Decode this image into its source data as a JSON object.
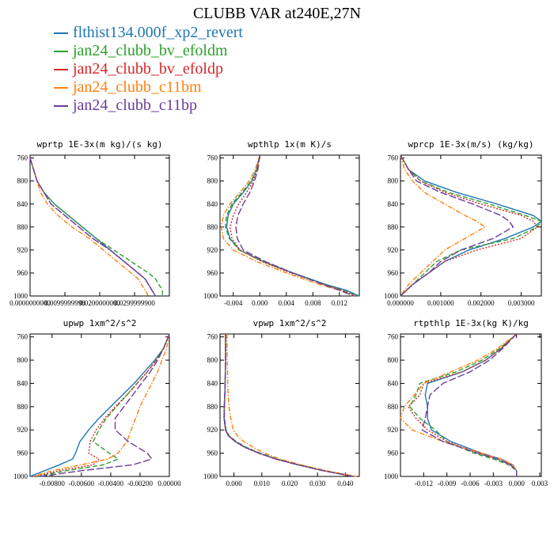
{
  "title": "CLUBB VAR at240E,27N",
  "colors": {
    "flthist134.000f_xp2_revert": "#1f77b4",
    "jan24_clubb_bv_efoldm": "#2ca02c",
    "jan24_clubb_bv_efoldp": "#d62728",
    "jan24_clubb_c11bm": "#ff7f0e",
    "jan24_clubb_c11bp": "#6a3d9a"
  },
  "legend": [
    {
      "label": "flthist134.000f_xp2_revert",
      "color": "#1f77b4",
      "dash": "solid"
    },
    {
      "label": "jan24_clubb_bv_efoldm",
      "color": "#2ca02c",
      "dash": "dash"
    },
    {
      "label": "jan24_clubb_bv_efoldp",
      "color": "#d62728",
      "dash": "dot"
    },
    {
      "label": "jan24_clubb_c11bm",
      "color": "#ff7f0e",
      "dash": "dashdot"
    },
    {
      "label": "jan24_clubb_c11bp",
      "color": "#6a3d9a",
      "dash": "longdash"
    }
  ],
  "chart_data": [
    {
      "type": "line",
      "title": "wprtp  1E-3x(m kg)/(s kg)",
      "xlim": [
        0,
        0.04
      ],
      "ylim": [
        1000,
        755
      ],
      "xticks": [
        0,
        0.01,
        0.02,
        0.03
      ],
      "xticklabels": [
        "0.0000000000",
        "0.0099999998",
        "0.0200000000",
        "0.0299999900"
      ],
      "yticks": [
        760,
        800,
        840,
        880,
        920,
        960,
        1000
      ],
      "yticklabels": [
        "760",
        "800",
        "840",
        "880",
        "920",
        "960",
        "1000"
      ],
      "y": [
        760,
        780,
        800,
        820,
        840,
        860,
        880,
        900,
        920,
        940,
        960,
        970,
        980,
        990,
        1000
      ],
      "series": [
        {
          "name": "flthist134.000f_xp2_revert",
          "values": [
            0,
            0.001,
            0.002,
            0.004,
            0.007,
            0.011,
            0.015,
            0.019,
            0.023,
            0.027,
            0.031,
            0.033,
            0.034,
            0.035,
            0.036
          ]
        },
        {
          "name": "jan24_clubb_bv_efoldm",
          "values": [
            0,
            0.001,
            0.002,
            0.004,
            0.007,
            0.011,
            0.015,
            0.019,
            0.024,
            0.029,
            0.034,
            0.036,
            0.037,
            0.038,
            0.038
          ]
        },
        {
          "name": "jan24_clubb_bv_efoldp",
          "values": [
            0,
            0.001,
            0.002,
            0.004,
            0.006,
            0.01,
            0.014,
            0.018,
            0.023,
            0.027,
            0.031,
            0.033,
            0.034,
            0.035,
            0.036
          ]
        },
        {
          "name": "jan24_clubb_c11bm",
          "values": [
            0,
            0.001,
            0.002,
            0.003,
            0.005,
            0.008,
            0.012,
            0.017,
            0.021,
            0.025,
            0.029,
            0.031,
            0.032,
            0.033,
            0.034
          ]
        },
        {
          "name": "jan24_clubb_c11bp",
          "values": [
            0,
            0.001,
            0.002,
            0.004,
            0.006,
            0.01,
            0.014,
            0.018,
            0.023,
            0.027,
            0.031,
            0.033,
            0.034,
            0.035,
            0.036
          ]
        }
      ]
    },
    {
      "type": "line",
      "title": "wpthlp  1x(m K)/s",
      "xlim": [
        -0.006,
        0.015
      ],
      "ylim": [
        1000,
        755
      ],
      "xticks": [
        -0.004,
        0,
        0.004,
        0.008,
        0.012
      ],
      "xticklabels": [
        "-0.004",
        "0.000",
        "0.004",
        "0.008",
        "0.012"
      ],
      "yticks": [
        760,
        800,
        840,
        880,
        920,
        960,
        1000
      ],
      "yticklabels": [
        "760",
        "800",
        "840",
        "880",
        "920",
        "960",
        "1000"
      ],
      "y": [
        755,
        780,
        800,
        820,
        840,
        860,
        880,
        900,
        920,
        940,
        960,
        980,
        990,
        1000
      ],
      "series": [
        {
          "name": "flthist134.000f_xp2_revert",
          "values": [
            0.0,
            -0.0005,
            -0.0012,
            -0.0025,
            -0.004,
            -0.0048,
            -0.005,
            -0.0045,
            -0.003,
            0.0005,
            0.005,
            0.01,
            0.013,
            0.015
          ]
        },
        {
          "name": "jan24_clubb_bv_efoldm",
          "values": [
            0.0,
            -0.0005,
            -0.0013,
            -0.0027,
            -0.0042,
            -0.005,
            -0.0052,
            -0.0046,
            -0.0031,
            0.0004,
            0.0048,
            0.0098,
            0.0125,
            0.0148
          ]
        },
        {
          "name": "jan24_clubb_bv_efoldp",
          "values": [
            0.0,
            -0.0004,
            -0.001,
            -0.002,
            -0.0032,
            -0.004,
            -0.0045,
            -0.0042,
            -0.003,
            0.0003,
            0.0047,
            0.0097,
            0.0123,
            0.0145
          ]
        },
        {
          "name": "jan24_clubb_c11bm",
          "values": [
            0.0,
            -0.0007,
            -0.0016,
            -0.003,
            -0.0045,
            -0.0055,
            -0.0058,
            -0.0055,
            -0.004,
            -0.0005,
            0.004,
            0.009,
            0.012,
            0.014
          ]
        },
        {
          "name": "jan24_clubb_c11bp",
          "values": [
            0.0,
            -0.0003,
            -0.0008,
            -0.0015,
            -0.0025,
            -0.0033,
            -0.0036,
            -0.0034,
            -0.0025,
            0.0008,
            0.005,
            0.0095,
            0.012,
            0.0142
          ]
        }
      ]
    },
    {
      "type": "line",
      "title": "wprcp  1E-3x(m/s) (kg/kg)",
      "xlim": [
        0,
        0.0035
      ],
      "ylim": [
        1000,
        755
      ],
      "xticks": [
        0,
        0.001,
        0.002,
        0.003
      ],
      "xticklabels": [
        "0.000000",
        "0.001000",
        "0.002000",
        "0.003000"
      ],
      "yticks": [
        760,
        800,
        840,
        880,
        920,
        960,
        1000
      ],
      "yticklabels": [
        "760",
        "800",
        "840",
        "880",
        "920",
        "960",
        "1000"
      ],
      "y": [
        755,
        780,
        800,
        820,
        840,
        860,
        870,
        880,
        900,
        920,
        940,
        960,
        980,
        1000
      ],
      "series": [
        {
          "name": "flthist134.000f_xp2_revert",
          "values": [
            0,
            0.0002,
            0.0006,
            0.0014,
            0.0024,
            0.0033,
            0.0035,
            0.0033,
            0.0026,
            0.0017,
            0.0011,
            0.0007,
            0.0003,
            0
          ]
        },
        {
          "name": "jan24_clubb_bv_efoldm",
          "values": [
            0,
            0.0002,
            0.0005,
            0.0012,
            0.0022,
            0.0031,
            0.0035,
            0.0034,
            0.0028,
            0.0015,
            0.0009,
            0.0006,
            0.0003,
            0
          ]
        },
        {
          "name": "jan24_clubb_bv_efoldp",
          "values": [
            0,
            0.0002,
            0.0005,
            0.0011,
            0.002,
            0.003,
            0.0033,
            0.0034,
            0.003,
            0.0019,
            0.0011,
            0.0007,
            0.0003,
            0
          ]
        },
        {
          "name": "jan24_clubb_c11bm",
          "values": [
            0,
            0.0001,
            0.0003,
            0.0006,
            0.0011,
            0.0016,
            0.0019,
            0.0021,
            0.0016,
            0.0011,
            0.0008,
            0.0005,
            0.0002,
            0
          ]
        },
        {
          "name": "jan24_clubb_c11bp",
          "values": [
            0,
            0.0002,
            0.0004,
            0.001,
            0.0018,
            0.0025,
            0.0027,
            0.0028,
            0.0023,
            0.0015,
            0.001,
            0.0007,
            0.0003,
            0
          ]
        }
      ]
    },
    {
      "type": "line",
      "title": "upwp  1xm^2/s^2",
      "xlim": [
        -0.0095,
        0
      ],
      "ylim": [
        1000,
        755
      ],
      "xticks": [
        -0.008,
        -0.006,
        -0.004,
        -0.002,
        0
      ],
      "xticklabels": [
        "-0.00800",
        "-0.00600",
        "-0.00400",
        "-0.00200",
        "0.00000"
      ],
      "yticks": [
        760,
        800,
        840,
        880,
        920,
        960,
        1000
      ],
      "yticklabels": [
        "760",
        "800",
        "840",
        "880",
        "920",
        "960",
        "1000"
      ],
      "y": [
        755,
        780,
        800,
        820,
        840,
        860,
        880,
        900,
        920,
        940,
        960,
        970,
        980,
        990,
        1000
      ],
      "series": [
        {
          "name": "flthist134.000f_xp2_revert",
          "values": [
            0,
            -0.0004,
            -0.001,
            -0.0017,
            -0.0024,
            -0.0032,
            -0.004,
            -0.0048,
            -0.0055,
            -0.0061,
            -0.0064,
            -0.0066,
            -0.0075,
            -0.0085,
            -0.0095
          ]
        },
        {
          "name": "jan24_clubb_bv_efoldm",
          "values": [
            0,
            -0.0004,
            -0.0009,
            -0.0015,
            -0.0022,
            -0.0029,
            -0.0036,
            -0.0043,
            -0.0048,
            -0.0052,
            -0.0041,
            -0.0035,
            -0.0045,
            -0.007,
            -0.009
          ]
        },
        {
          "name": "jan24_clubb_bv_efoldp",
          "values": [
            0,
            -0.0004,
            -0.0009,
            -0.0015,
            -0.0022,
            -0.0029,
            -0.0037,
            -0.0044,
            -0.005,
            -0.0054,
            -0.0055,
            -0.0048,
            -0.0052,
            -0.0075,
            -0.0092
          ]
        },
        {
          "name": "jan24_clubb_c11bm",
          "values": [
            0,
            -0.0002,
            -0.0005,
            -0.0008,
            -0.0012,
            -0.0016,
            -0.002,
            -0.0023,
            -0.0026,
            -0.0029,
            -0.0035,
            -0.0042,
            -0.006,
            -0.008,
            -0.0093
          ]
        },
        {
          "name": "jan24_clubb_c11bp",
          "values": [
            0,
            -0.0004,
            -0.0008,
            -0.0013,
            -0.0019,
            -0.0025,
            -0.0031,
            -0.0037,
            -0.0037,
            -0.0028,
            -0.0015,
            -0.0012,
            -0.0025,
            -0.006,
            -0.0088
          ]
        }
      ]
    },
    {
      "type": "line",
      "title": "vpwp  1xm^2/s^2",
      "xlim": [
        -0.005,
        0.045
      ],
      "ylim": [
        1000,
        755
      ],
      "xticks": [
        0,
        0.01,
        0.02,
        0.03,
        0.04
      ],
      "xticklabels": [
        "0.000",
        "0.010",
        "0.020",
        "0.030",
        "0.040"
      ],
      "yticks": [
        760,
        800,
        840,
        880,
        920,
        960,
        1000
      ],
      "yticklabels": [
        "760",
        "800",
        "840",
        "880",
        "920",
        "960",
        "1000"
      ],
      "y": [
        755,
        800,
        850,
        880,
        900,
        920,
        930,
        940,
        950,
        960,
        970,
        980,
        990,
        1000
      ],
      "series": [
        {
          "name": "flthist134.000f_xp2_revert",
          "values": [
            -0.003,
            -0.003,
            -0.0032,
            -0.0035,
            -0.0035,
            -0.003,
            -0.002,
            0.0005,
            0.004,
            0.009,
            0.015,
            0.023,
            0.032,
            0.043
          ]
        },
        {
          "name": "jan24_clubb_bv_efoldm",
          "values": [
            -0.003,
            -0.003,
            -0.0032,
            -0.0034,
            -0.0034,
            -0.0028,
            -0.0017,
            0.0008,
            0.0045,
            0.0095,
            0.0155,
            0.0235,
            0.0325,
            0.0435
          ]
        },
        {
          "name": "jan24_clubb_bv_efoldp",
          "values": [
            -0.003,
            -0.003,
            -0.0032,
            -0.0035,
            -0.0036,
            -0.0031,
            -0.0021,
            0.0003,
            0.0038,
            0.0088,
            0.0148,
            0.0228,
            0.0318,
            0.0425
          ]
        },
        {
          "name": "jan24_clubb_c11bm",
          "values": [
            -0.0025,
            -0.0024,
            -0.0022,
            -0.0018,
            -0.0012,
            -0.0002,
            0.0012,
            0.0035,
            0.007,
            0.011,
            0.0165,
            0.024,
            0.033,
            0.044
          ]
        },
        {
          "name": "jan24_clubb_c11bp",
          "values": [
            -0.003,
            -0.003,
            -0.0032,
            -0.0034,
            -0.0035,
            -0.003,
            -0.0019,
            0.0006,
            0.0041,
            0.0091,
            0.0151,
            0.0231,
            0.0321,
            0.0428
          ]
        }
      ]
    },
    {
      "type": "line",
      "title": "rtpthlp  1E-3x(kg K)/kg",
      "xlim": [
        -0.015,
        0.0032
      ],
      "ylim": [
        1000,
        755
      ],
      "xticks": [
        -0.012,
        -0.009,
        -0.006,
        -0.003,
        0,
        0.003
      ],
      "xticklabels": [
        "-0.012",
        "-0.009",
        "-0.006",
        "-0.003",
        "0.000",
        "0.003"
      ],
      "yticks": [
        760,
        800,
        840,
        880,
        920,
        960,
        1000
      ],
      "yticklabels": [
        "760",
        "800",
        "840",
        "880",
        "920",
        "960",
        "1000"
      ],
      "y": [
        755,
        780,
        800,
        820,
        840,
        860,
        880,
        900,
        920,
        940,
        960,
        970,
        980,
        990,
        1000
      ],
      "series": [
        {
          "name": "flthist134.000f_xp2_revert",
          "values": [
            0,
            -0.002,
            -0.004,
            -0.007,
            -0.0115,
            -0.0118,
            -0.0115,
            -0.0115,
            -0.011,
            -0.0085,
            -0.0045,
            -0.002,
            -0.0005,
            0.0,
            0.0
          ]
        },
        {
          "name": "jan24_clubb_bv_efoldm",
          "values": [
            0,
            -0.0022,
            -0.0045,
            -0.0078,
            -0.0125,
            -0.013,
            -0.0138,
            -0.0125,
            -0.0105,
            -0.009,
            -0.0055,
            -0.003,
            -0.001,
            0.0,
            0.0
          ]
        },
        {
          "name": "jan24_clubb_bv_efoldp",
          "values": [
            0,
            -0.002,
            -0.004,
            -0.007,
            -0.012,
            -0.0125,
            -0.014,
            -0.013,
            -0.0115,
            -0.009,
            -0.005,
            -0.0025,
            -0.0007,
            0.0,
            0.0
          ]
        },
        {
          "name": "jan24_clubb_c11bm",
          "values": [
            0,
            -0.0025,
            -0.005,
            -0.0085,
            -0.012,
            -0.0132,
            -0.0145,
            -0.015,
            -0.0135,
            -0.0095,
            -0.0045,
            -0.002,
            -0.0005,
            0.0,
            0.0
          ]
        },
        {
          "name": "jan24_clubb_c11bp",
          "values": [
            0,
            -0.0018,
            -0.0035,
            -0.006,
            -0.0095,
            -0.0112,
            -0.0115,
            -0.0118,
            -0.0122,
            -0.0095,
            -0.005,
            -0.0025,
            -0.0008,
            0.0,
            0.0
          ]
        }
      ]
    }
  ]
}
